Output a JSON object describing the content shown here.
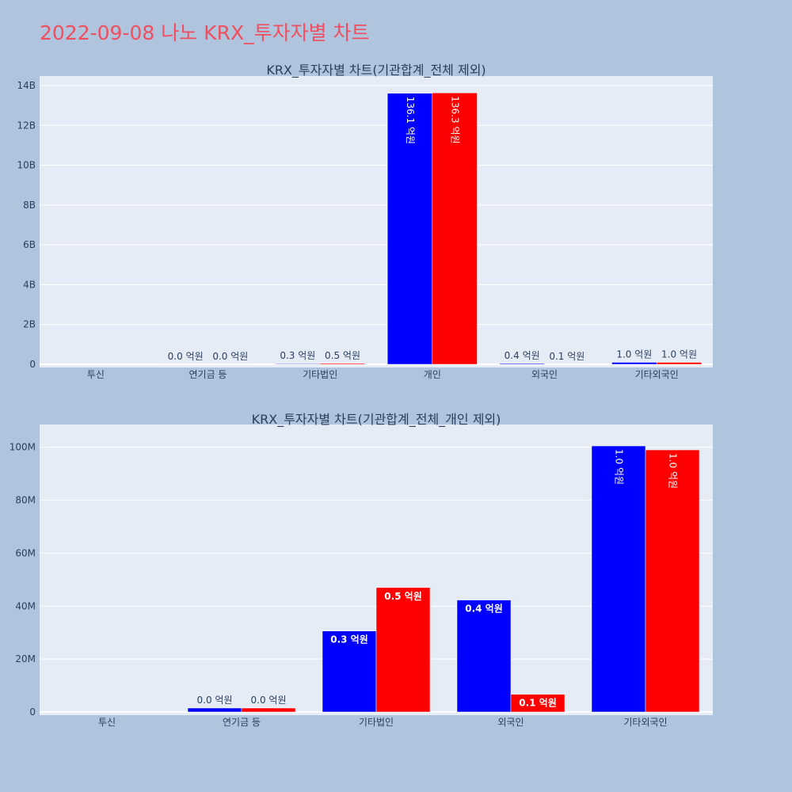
{
  "page": {
    "title": "2022-09-08 나노 KRX_투자자별 차트"
  },
  "colors": {
    "buy": "#0000ff",
    "sell": "#ff0000",
    "plot_bg": "#e5ecf6",
    "page_bg": "#b0c4de",
    "title": "#ef4f5f",
    "text": "#2a3f5f"
  },
  "chart_data": [
    {
      "type": "bar",
      "title": "KRX_투자자별 차트(기관합계_전체 제외)",
      "categories": [
        "투신",
        "연기금 등",
        "기타법인",
        "개인",
        "외국인",
        "기타외국인"
      ],
      "series": [
        {
          "values": [
            0,
            3000000,
            30000000,
            13610000000,
            42000000,
            100000000
          ],
          "labels": [
            "",
            "0.0 억원",
            "0.3 억원",
            "136.1 억원",
            "0.4 억원",
            "1.0 억원"
          ]
        },
        {
          "values": [
            0,
            3000000,
            47000000,
            13630000000,
            7000000,
            99000000
          ],
          "labels": [
            "",
            "0.0 억원",
            "0.5 억원",
            "136.3 억원",
            "0.1 억원",
            "1.0 억원"
          ]
        }
      ],
      "ylim": [
        0,
        14000000000
      ],
      "yticks": [
        0,
        2000000000,
        4000000000,
        6000000000,
        8000000000,
        10000000000,
        12000000000,
        14000000000
      ],
      "ytick_labels": [
        "0",
        "2B",
        "4B",
        "6B",
        "8B",
        "10B",
        "12B",
        "14B"
      ],
      "grid": true
    },
    {
      "type": "bar",
      "title": "KRX_투자자별 차트(기관합계_전체_개인 제외)",
      "categories": [
        "투신",
        "연기금 등",
        "기타법인",
        "외국인",
        "기타외국인"
      ],
      "series": [
        {
          "values": [
            0,
            1500000,
            30600000,
            42300000,
            100500000
          ],
          "labels": [
            "",
            "0.0 억원",
            "0.3 억원",
            "0.4 억원",
            "1.0 억원"
          ]
        },
        {
          "values": [
            0,
            1500000,
            47000000,
            6700000,
            99000000
          ],
          "labels": [
            "",
            "0.0 억원",
            "0.5 억원",
            "0.1 억원",
            "1.0 억원"
          ]
        }
      ],
      "ylim": [
        0,
        105000000
      ],
      "yticks": [
        0,
        20000000,
        40000000,
        60000000,
        80000000,
        100000000
      ],
      "ytick_labels": [
        "0",
        "20M",
        "40M",
        "60M",
        "80M",
        "100M"
      ],
      "grid": true
    }
  ]
}
